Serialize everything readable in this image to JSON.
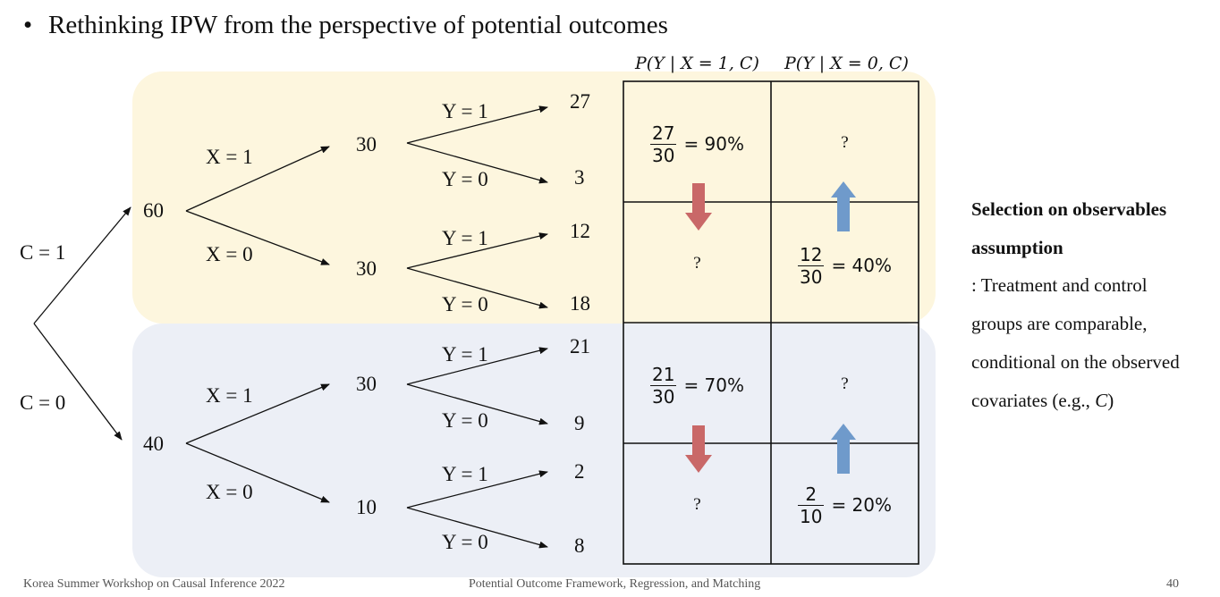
{
  "slide": {
    "bullet_char": "•",
    "bullet_text": "Rethinking IPW from the perspective of potential outcomes"
  },
  "header": {
    "col1": "P(Y | X = 1, C)",
    "col2": "P(Y | X = 0, C)"
  },
  "tree": {
    "c1_label": "C = 1",
    "c0_label": "C = 0",
    "c1_count": "60",
    "c0_count": "40",
    "x1_label": "X = 1",
    "x0_label": "X = 0",
    "y1_label": "Y = 1",
    "y0_label": "Y = 0",
    "c1x1_count": "30",
    "c1x0_count": "30",
    "c0x1_count": "30",
    "c0x0_count": "10",
    "leaves": [
      "27",
      "3",
      "12",
      "18",
      "21",
      "9",
      "2",
      "8"
    ]
  },
  "table": {
    "unknown": "?",
    "r1": {
      "num": "27",
      "den": "30",
      "pct": "= 90%"
    },
    "r2": {
      "num": "12",
      "den": "30",
      "pct": "= 40%"
    },
    "r3": {
      "num": "21",
      "den": "30",
      "pct": "= 70%"
    },
    "r4": {
      "num": "2",
      "den": "10",
      "pct": "= 20%"
    }
  },
  "colors": {
    "top_panel": "#fdf6de",
    "bottom_panel": "#eceff6",
    "down_arrow": "#c96868",
    "up_arrow": "#6f9acb"
  },
  "side_note": {
    "title_line1": "Selection on observables",
    "title_line2": "assumption",
    "line1": ": Treatment and control",
    "line2": "groups are comparable,",
    "line3": "conditional on the observed",
    "line4_prefix": "covariates (e.g., ",
    "line4_var": "C",
    "line4_suffix": ")"
  },
  "footer": {
    "left": "Korea Summer Workshop on Causal Inference 2022",
    "center": "Potential Outcome Framework, Regression, and Matching",
    "page": "40"
  }
}
